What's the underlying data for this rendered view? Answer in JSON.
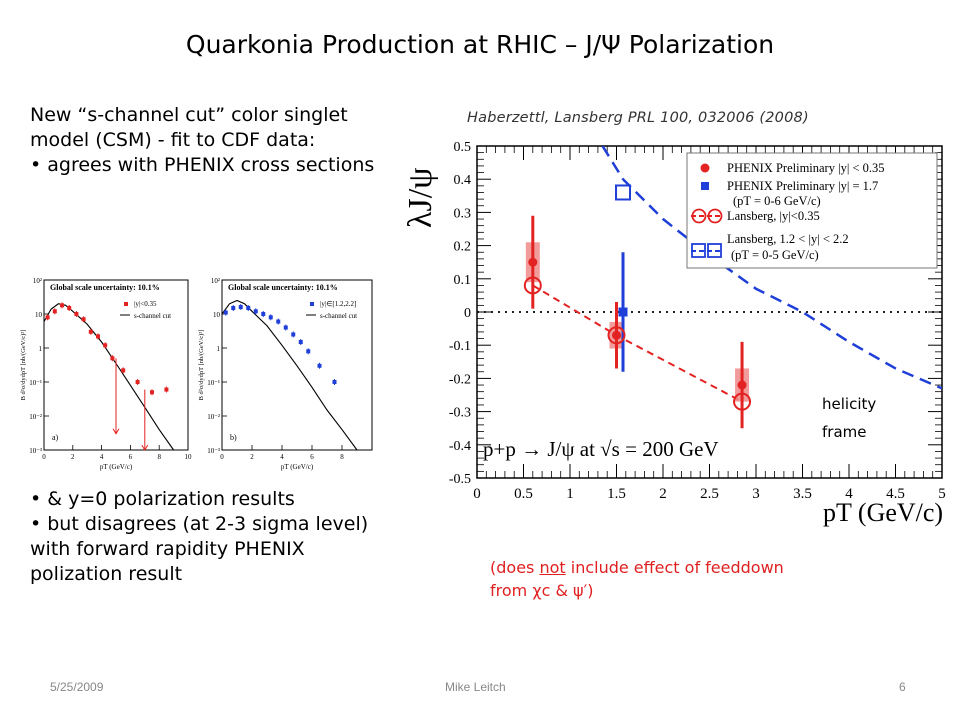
{
  "slide": {
    "title": "Quarkonia Production at RHIC – J/Ψ  Polarization",
    "bullets_top": [
      "New “s-channel cut” color singlet model (CSM)  - fit to CDF data:",
      "• agrees with PHENIX  cross sections"
    ],
    "bullets_bottom": [
      "• & y=0 polarization results",
      "• but disagrees (at 2-3 sigma level) with forward rapidity PHENIX polization result"
    ],
    "citation": "Haberzettl, Lansberg PRL 100, 032006 (2008)",
    "note_line1_pre": "(does ",
    "note_line1_under": "not",
    "note_line1_post": " include effect of feeddown",
    "note_line2": "from χc & ψ′)",
    "footer": {
      "date": "5/25/2009",
      "author": "Mike Leitch",
      "page": "6"
    },
    "colors": {
      "red": "#e32222",
      "blue": "#1f3fd8",
      "note_red": "#e02020"
    }
  },
  "chart_data": [
    {
      "type": "scatter",
      "title": "",
      "xlabel": "pT (GeV/c)",
      "ylabel": "λJ/ψ",
      "xlim": [
        0,
        5
      ],
      "ylim": [
        -0.5,
        0.5
      ],
      "x_ticks": [
        "0",
        "0.5",
        "1",
        "1.5",
        "2",
        "2.5",
        "3",
        "3.5",
        "4",
        "4.5",
        "5"
      ],
      "y_ticks": [
        "0.5",
        "0.4",
        "0.3",
        "0.2",
        "0.1",
        "0",
        "-0.1",
        "-0.2",
        "-0.3",
        "-0.4",
        "-0.5"
      ],
      "annotation_process": "p+p → J/ψ at √s = 200 GeV",
      "annotation_frame": [
        "helicity",
        "frame"
      ],
      "legend_position": "top-right",
      "series": [
        {
          "name": "PHENIX Preliminary |y| < 0.35",
          "kind": "data",
          "color": "#e32222",
          "x": [
            0.6,
            1.5,
            2.85
          ],
          "y": [
            0.15,
            -0.07,
            -0.22
          ],
          "err_low": [
            0.14,
            0.1,
            0.13
          ],
          "err_high": [
            0.14,
            0.1,
            0.13
          ],
          "sys_low": [
            0.06,
            0.04,
            0.05
          ],
          "sys_high": [
            0.06,
            0.04,
            0.05
          ]
        },
        {
          "name": "PHENIX Preliminary |y| = 1.7",
          "name2": "(pT = 0-6 GeV/c)",
          "kind": "data",
          "color": "#1f3fd8",
          "x": [
            1.57
          ],
          "y": [
            0.0
          ],
          "err_low": [
            0.18
          ],
          "err_high": [
            0.18
          ]
        },
        {
          "name": "Lansberg, |y|<0.35",
          "kind": "model",
          "color": "#e32222",
          "x": [
            0.6,
            1.5,
            2.85
          ],
          "y": [
            0.08,
            -0.07,
            -0.27
          ]
        },
        {
          "name": "Lansberg, 1.2 < |y| < 2.2",
          "name2": "(pT = 0-5 GeV/c)",
          "kind": "model",
          "color": "#1f3fd8",
          "x": [
            1.35,
            1.57,
            2.0,
            2.5,
            3.0,
            3.5,
            4.0,
            4.5,
            5.0
          ],
          "y": [
            0.5,
            0.4,
            0.28,
            0.17,
            0.07,
            0.0,
            -0.09,
            -0.17,
            -0.23
          ],
          "marker_x": [
            1.57
          ],
          "marker_y": [
            0.36
          ]
        }
      ]
    },
    {
      "type": "scatter",
      "title": "Global scale uncertainty: 10.1%",
      "xlabel": "pT (GeV/c)",
      "ylabel": "B d²σ/dydpT [nb/(GeV/c)²]",
      "log_y": true,
      "xlim": [
        0,
        10
      ],
      "ylim_exp": [
        -3,
        2
      ],
      "x_ticks": [
        "0",
        "2",
        "4",
        "6",
        "8",
        "10"
      ],
      "y_ticks": [
        "10²",
        "10",
        "1",
        "10⁻¹",
        "10⁻²",
        "10⁻³"
      ],
      "panel_label": "a)",
      "legend": [
        "|y|<0.35",
        "s-channel cut"
      ],
      "series": [
        {
          "name": "|y|<0.35",
          "color": "#e32222",
          "x": [
            0.25,
            0.75,
            1.25,
            1.75,
            2.25,
            2.75,
            3.25,
            3.75,
            4.25,
            4.75,
            5.5,
            6.5,
            7.5,
            8.5
          ],
          "y": [
            8,
            12,
            18,
            15,
            10,
            7,
            3,
            2.2,
            1.2,
            0.5,
            0.22,
            0.1,
            0.05,
            0.06
          ]
        },
        {
          "name": "s-channel cut",
          "color": "#000000",
          "x": [
            0,
            0.5,
            1,
            1.5,
            2,
            3,
            4,
            5,
            6,
            7,
            8,
            9
          ],
          "y": [
            6,
            14,
            20,
            18,
            12,
            5,
            1.5,
            0.35,
            0.08,
            0.018,
            0.004,
            0.001
          ]
        }
      ]
    },
    {
      "type": "scatter",
      "title": "Global scale uncertainty: 10.1%",
      "xlabel": "pT (GeV/c)",
      "ylabel": "B d²σ/dydpT [nb/(GeV/c)²]",
      "log_y": true,
      "xlim": [
        0,
        10
      ],
      "ylim_exp": [
        -3,
        2
      ],
      "x_ticks": [
        "0",
        "2",
        "4",
        "6",
        "8"
      ],
      "y_ticks": [
        "10²",
        "10",
        "1",
        "10⁻¹",
        "10⁻²",
        "10⁻³"
      ],
      "panel_label": "b)",
      "legend": [
        "|y|∈[1.2,2.2]",
        "s-channel cut"
      ],
      "series": [
        {
          "name": "|y|∈[1.2,2.2]",
          "color": "#1f3fd8",
          "x": [
            0.25,
            0.75,
            1.25,
            1.75,
            2.25,
            2.75,
            3.25,
            3.75,
            4.25,
            4.75,
            5.25,
            5.75,
            6.5,
            7.5
          ],
          "y": [
            11,
            15,
            16,
            15,
            12,
            10,
            8,
            6,
            4,
            2.5,
            1.5,
            0.8,
            0.3,
            0.1
          ]
        },
        {
          "name": "s-channel cut",
          "color": "#000000",
          "x": [
            0,
            0.5,
            1,
            1.5,
            2,
            3,
            4,
            5,
            6,
            7,
            8,
            9
          ],
          "y": [
            10,
            20,
            25,
            20,
            12,
            4.5,
            1.2,
            0.3,
            0.07,
            0.015,
            0.004,
            0.001
          ]
        }
      ]
    }
  ]
}
